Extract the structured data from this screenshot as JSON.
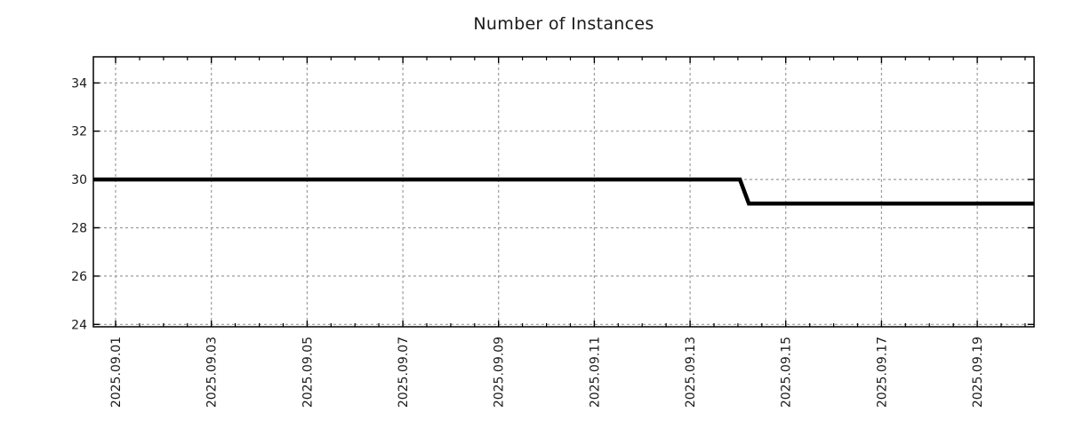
{
  "title": "Number of Instances",
  "chart_data": {
    "type": "line",
    "title": "Number of Instances",
    "xlabel": "",
    "ylabel": "",
    "legend": "none",
    "grid": true,
    "x_range": [
      "2025-08-31 12:50",
      "2025-09-20 04:30"
    ],
    "ylim": [
      23.9,
      35.08
    ],
    "y_ticks": [
      24,
      26,
      28,
      30,
      32,
      34
    ],
    "x_ticks": [
      {
        "date": "2025-09-01 00:00",
        "label": "2025.09.01"
      },
      {
        "date": "2025-09-03 00:00",
        "label": "2025.09.03"
      },
      {
        "date": "2025-09-05 00:00",
        "label": "2025.09.05"
      },
      {
        "date": "2025-09-07 00:00",
        "label": "2025.09.07"
      },
      {
        "date": "2025-09-09 00:00",
        "label": "2025.09.09"
      },
      {
        "date": "2025-09-11 00:00",
        "label": "2025.09.11"
      },
      {
        "date": "2025-09-13 00:00",
        "label": "2025.09.13"
      },
      {
        "date": "2025-09-15 00:00",
        "label": "2025.09.15"
      },
      {
        "date": "2025-09-17 00:00",
        "label": "2025.09.17"
      },
      {
        "date": "2025-09-19 00:00",
        "label": "2025.09.19"
      }
    ],
    "x_minor_interval_hours": 12,
    "series": [
      {
        "name": "Number of Instances",
        "color": "#000000",
        "line_width": 4.5,
        "points": [
          {
            "x": "2025-08-31 12:50",
            "y": 30
          },
          {
            "x": "2025-09-14 01:00",
            "y": 30
          },
          {
            "x": "2025-09-14 05:30",
            "y": 29
          },
          {
            "x": "2025-09-20 04:30",
            "y": 29
          }
        ]
      }
    ]
  },
  "style": {
    "background": "#ffffff",
    "grid_color": "#9c9c9c",
    "axis_color": "#000000",
    "text_color": "#1a1a1a"
  }
}
